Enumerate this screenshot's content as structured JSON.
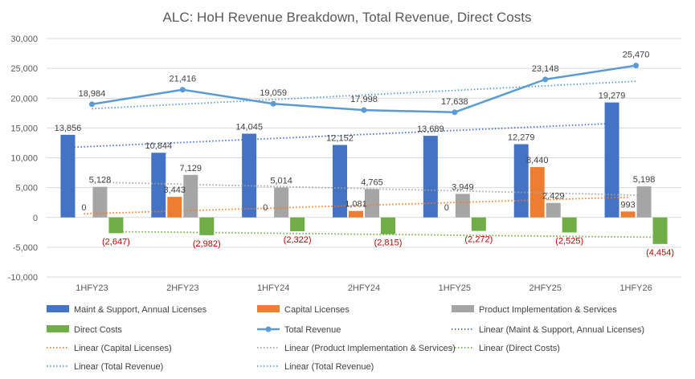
{
  "chart_data": {
    "type": "bar",
    "title": "ALC: HoH Revenue Breakdown, Total Revenue, Direct Costs",
    "categories": [
      "1HFY23",
      "2HFY23",
      "1HFY24",
      "2HFY24",
      "1HFY25",
      "2HFY25",
      "1HFY26"
    ],
    "ylim": [
      -10000,
      30000
    ],
    "yticks": [
      30000,
      25000,
      20000,
      15000,
      10000,
      5000,
      0,
      -5000,
      -10000
    ],
    "ytick_labels": [
      "30,000",
      "25,000",
      "20,000",
      "15,000",
      "10,000",
      "5,000",
      "0",
      "-5,000",
      "-10,000"
    ],
    "grid": true,
    "legend_position": "bottom",
    "series": [
      {
        "name": "Maint & Support, Annual Licenses",
        "type": "bar",
        "color": "#4472c4",
        "values": [
          13856,
          10844,
          14045,
          12152,
          13689,
          12279,
          19279
        ],
        "labels": [
          "13,856",
          "10,844",
          "14,045",
          "12,152",
          "13,689",
          "12,279",
          "19,279"
        ]
      },
      {
        "name": "Capital Licenses",
        "type": "bar",
        "color": "#ed7d31",
        "values": [
          0,
          3443,
          0,
          1081,
          0,
          8440,
          993
        ],
        "labels": [
          "0",
          "3,443",
          "0",
          "1,081",
          "0",
          "8,440",
          "993"
        ]
      },
      {
        "name": "Product Implementation & Services",
        "type": "bar",
        "color": "#a5a5a5",
        "values": [
          5128,
          7129,
          5014,
          4765,
          3949,
          2429,
          5198
        ],
        "labels": [
          "5,128",
          "7,129",
          "5,014",
          "4,765",
          "3,949",
          "2,429",
          "5,198"
        ]
      },
      {
        "name": "Direct Costs",
        "type": "bar",
        "color": "#70ad47",
        "values": [
          -2647,
          -2982,
          -2322,
          -2815,
          -2272,
          -2525,
          -4454
        ],
        "labels": [
          "(2,647)",
          "(2,982)",
          "(2,322)",
          "(2,815)",
          "(2,272)",
          "(2,525)",
          "(4,454)"
        ]
      },
      {
        "name": "Total Revenue",
        "type": "line",
        "color": "#5b9bd5",
        "values": [
          18984,
          21416,
          19059,
          17998,
          17638,
          23148,
          25470
        ],
        "labels": [
          "18,984",
          "21,416",
          "19,059",
          "17,998",
          "17,638",
          "23,148",
          "25,470"
        ]
      }
    ],
    "trendlines": [
      {
        "name": "Linear (Maint & Support, Annual Licenses)",
        "of": 0,
        "color": "#4472c4",
        "legend": true
      },
      {
        "name": "Linear (Capital Licenses)",
        "of": 1,
        "color": "#ed7d31",
        "legend": true
      },
      {
        "name": "Linear (Product Implementation & Services)",
        "of": 2,
        "color": "#a5a5a5",
        "legend": true
      },
      {
        "name": "Linear (Direct Costs)",
        "of": 3,
        "color": "#70ad47",
        "legend": true
      },
      {
        "name": "Linear (Total Revenue)",
        "of": 4,
        "color": "#5b9bd5",
        "legend": true
      },
      {
        "name": "Linear (Total Revenue)",
        "of": 4,
        "color": "#5b9bd5",
        "legend": true
      }
    ]
  }
}
